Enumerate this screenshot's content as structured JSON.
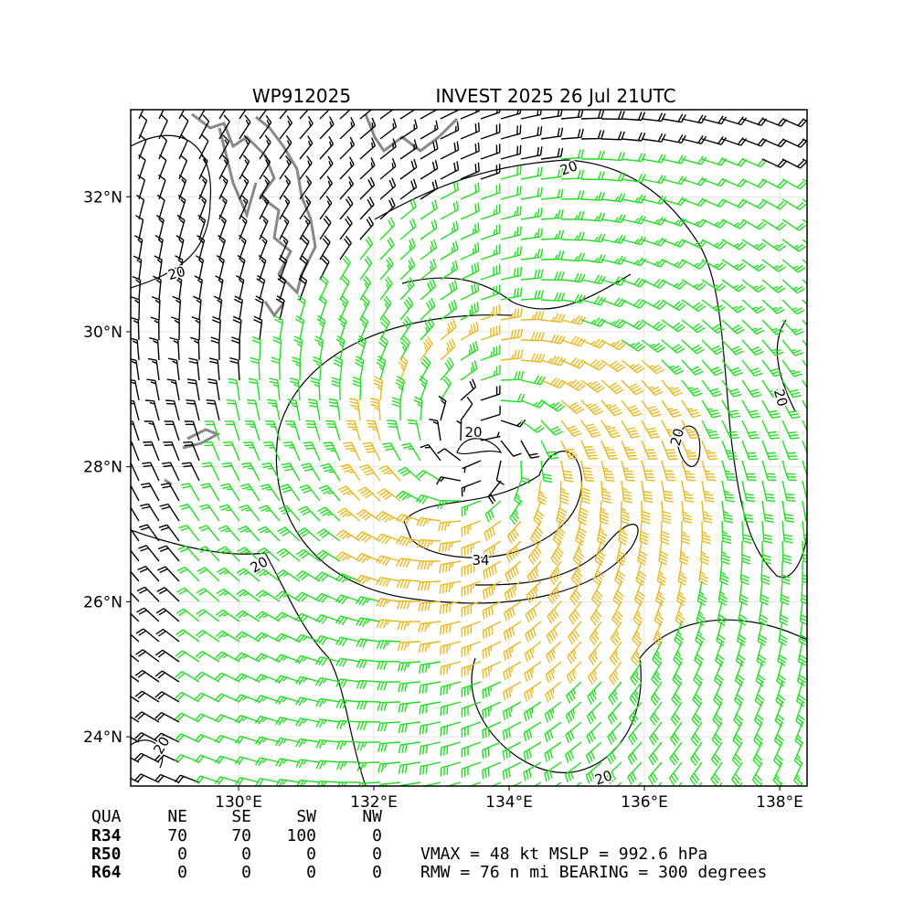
{
  "header": {
    "id": "WP912025",
    "title": "INVEST 2025 26 Jul 21UTC"
  },
  "map": {
    "xlim": [
      128.405,
      138.405
    ],
    "ylim": [
      23.27,
      33.29
    ],
    "xticks": [
      {
        "value": 130,
        "label": "130°E"
      },
      {
        "value": 132,
        "label": "132°E"
      },
      {
        "value": 134,
        "label": "134°E"
      },
      {
        "value": 136,
        "label": "136°E"
      },
      {
        "value": 138,
        "label": "138°E"
      }
    ],
    "yticks": [
      {
        "value": 24,
        "label": "24°N"
      },
      {
        "value": 26,
        "label": "26°N"
      },
      {
        "value": 28,
        "label": "28°N"
      },
      {
        "value": 30,
        "label": "30°N"
      },
      {
        "value": 32,
        "label": "32°N"
      }
    ],
    "grid": true,
    "contour_labels": [
      "20",
      "20",
      "20",
      "20",
      "20",
      "20",
      "34",
      "20",
      "20"
    ]
  },
  "table": {
    "columns": [
      "QUA",
      "NE",
      "SE",
      "SW",
      "NW"
    ],
    "rows": [
      [
        "R34",
        "70",
        "70",
        "100",
        "0"
      ],
      [
        "R50",
        "0",
        "0",
        "0",
        "0"
      ],
      [
        "R64",
        "0",
        "0",
        "0",
        "0"
      ]
    ]
  },
  "summary": [
    "VMAX =  48 kt MSLP = 992.6 hPa",
    "RMW =  76 n mi BEARING = 300 degrees"
  ]
}
